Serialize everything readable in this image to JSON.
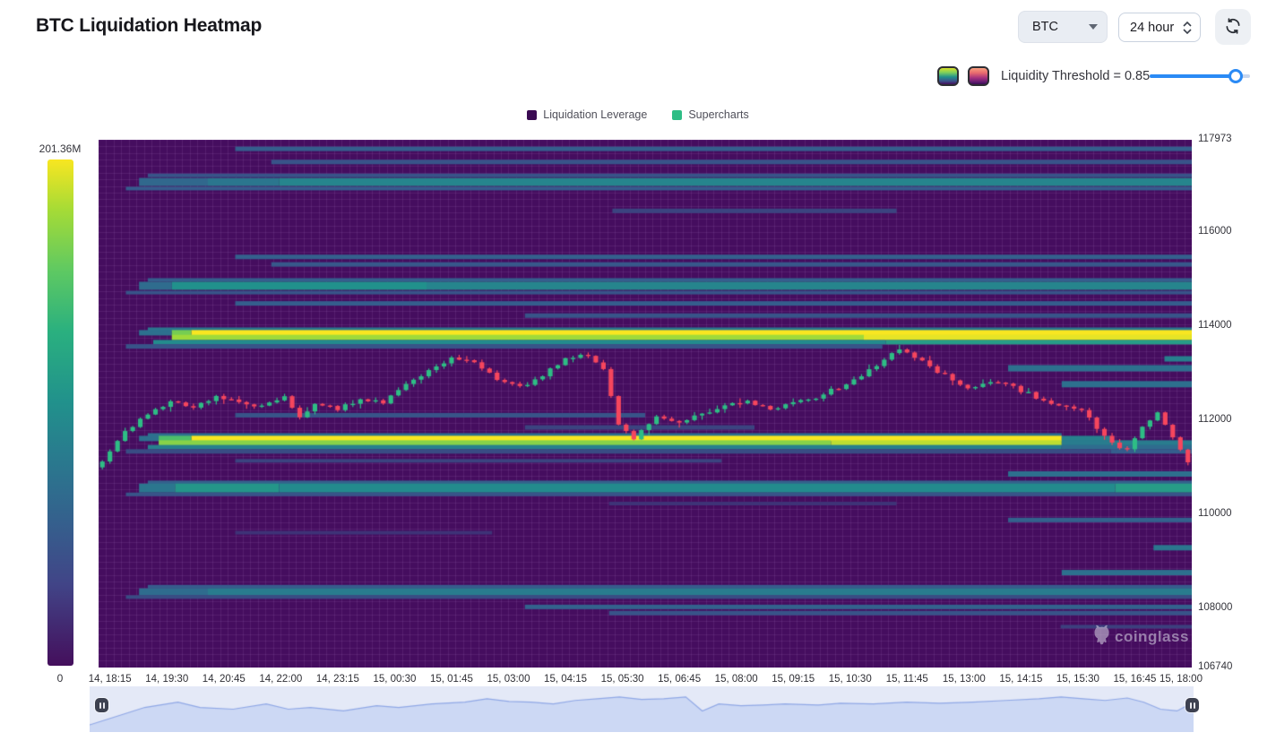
{
  "header": {
    "title": "BTC Liquidation Heatmap"
  },
  "controls": {
    "symbol": "BTC",
    "timeframe": "24 hour",
    "refresh_icon": "refresh-icon",
    "colormap_options": [
      "viridis-colormap",
      "magma-colormap"
    ]
  },
  "threshold": {
    "label": "Liquidity Threshold = 0.85",
    "value": 0.85
  },
  "legend": {
    "items": [
      {
        "label": "Liquidation Leverage",
        "color": "#3a0a52"
      },
      {
        "label": "Supercharts",
        "color": "#2ebd85"
      }
    ]
  },
  "watermark": {
    "text": "coinglass"
  },
  "chart_data": {
    "type": "heatmap",
    "title": "BTC Liquidation Heatmap",
    "background": "#450d5f",
    "grid": true,
    "colorbar": {
      "max_label": "201.36M",
      "min_label": "0",
      "max_value_millions": 201.36,
      "min_value": 0,
      "colormap": "viridis"
    },
    "y_axis": {
      "min": 106740,
      "max": 117973,
      "ticks": [
        117973,
        116000,
        114000,
        112000,
        110000,
        108000,
        106740
      ]
    },
    "x_axis": {
      "ticks": [
        "14, 18:15",
        "14, 19:30",
        "14, 20:45",
        "14, 22:00",
        "14, 23:15",
        "15, 00:30",
        "15, 01:45",
        "15, 03:00",
        "15, 04:15",
        "15, 05:30",
        "15, 06:45",
        "15, 08:00",
        "15, 09:15",
        "15, 10:30",
        "15, 11:45",
        "15, 13:00",
        "15, 14:15",
        "15, 15:30",
        "15, 16:45",
        "15, 18:00"
      ],
      "tick_interval_minutes": 75,
      "first_tick_offset_minutes": 15,
      "total_minutes": 1440
    },
    "candles": {
      "count": 144,
      "up_color": "#2ebd85",
      "down_color": "#f6465d",
      "close_keypoints": [
        [
          0,
          111150
        ],
        [
          3,
          111750
        ],
        [
          6,
          112150
        ],
        [
          9,
          112400
        ],
        [
          12,
          112300
        ],
        [
          15,
          112500
        ],
        [
          18,
          112400
        ],
        [
          21,
          112300
        ],
        [
          24,
          112500
        ],
        [
          26,
          112050
        ],
        [
          28,
          112350
        ],
        [
          31,
          112250
        ],
        [
          34,
          112450
        ],
        [
          37,
          112400
        ],
        [
          40,
          112750
        ],
        [
          43,
          113050
        ],
        [
          46,
          113350
        ],
        [
          49,
          113200
        ],
        [
          52,
          112900
        ],
        [
          55,
          112700
        ],
        [
          58,
          112950
        ],
        [
          61,
          113300
        ],
        [
          64,
          113400
        ],
        [
          66,
          113100
        ],
        [
          68,
          111900
        ],
        [
          70,
          111600
        ],
        [
          73,
          112100
        ],
        [
          76,
          111950
        ],
        [
          79,
          112150
        ],
        [
          82,
          112300
        ],
        [
          85,
          112400
        ],
        [
          88,
          112250
        ],
        [
          91,
          112350
        ],
        [
          94,
          112500
        ],
        [
          97,
          112700
        ],
        [
          100,
          112950
        ],
        [
          103,
          113300
        ],
        [
          105,
          113500
        ],
        [
          108,
          113250
        ],
        [
          111,
          112950
        ],
        [
          114,
          112700
        ],
        [
          117,
          112850
        ],
        [
          120,
          112700
        ],
        [
          123,
          112500
        ],
        [
          126,
          112300
        ],
        [
          129,
          112250
        ],
        [
          131,
          111800
        ],
        [
          133,
          111500
        ],
        [
          135,
          111350
        ],
        [
          137,
          111850
        ],
        [
          139,
          112150
        ],
        [
          141,
          111650
        ],
        [
          143,
          111100
        ]
      ]
    },
    "liquidity_bands": [
      {
        "p": 117780,
        "h": 5,
        "segs": [
          [
            0.125,
            1,
            0.33
          ]
        ]
      },
      {
        "p": 117500,
        "h": 5,
        "segs": [
          [
            0.158,
            1,
            0.3
          ]
        ]
      },
      {
        "p": 117215,
        "h": 4,
        "segs": [
          [
            0.045,
            1,
            0.3
          ]
        ]
      },
      {
        "p": 117075,
        "h": 9,
        "segs": [
          [
            0.037,
            0.1,
            0.38
          ],
          [
            0.1,
            0.165,
            0.45
          ],
          [
            0.165,
            1,
            0.52
          ]
        ]
      },
      {
        "p": 116935,
        "h": 4,
        "segs": [
          [
            0.025,
            1,
            0.32
          ]
        ]
      },
      {
        "p": 116460,
        "h": 5,
        "segs": [
          [
            0.47,
            0.73,
            0.26
          ]
        ]
      },
      {
        "p": 115480,
        "h": 5,
        "segs": [
          [
            0.125,
            1,
            0.34
          ]
        ]
      },
      {
        "p": 115320,
        "h": 5,
        "segs": [
          [
            0.158,
            1,
            0.31
          ]
        ]
      },
      {
        "p": 114990,
        "h": 4,
        "segs": [
          [
            0.045,
            1,
            0.33
          ]
        ]
      },
      {
        "p": 114865,
        "h": 9,
        "segs": [
          [
            0.037,
            0.067,
            0.4
          ],
          [
            0.067,
            0.3,
            0.58
          ],
          [
            0.3,
            1,
            0.52
          ]
        ]
      },
      {
        "p": 114720,
        "h": 4,
        "segs": [
          [
            0.025,
            1,
            0.3
          ]
        ]
      },
      {
        "p": 114490,
        "h": 5,
        "segs": [
          [
            0.125,
            1,
            0.33
          ]
        ]
      },
      {
        "p": 114230,
        "h": 5,
        "segs": [
          [
            0.39,
            1,
            0.3
          ]
        ]
      },
      {
        "p": 113940,
        "h": 4,
        "segs": [
          [
            0.045,
            1,
            0.45
          ]
        ]
      },
      {
        "p": 113865,
        "h": 6,
        "segs": [
          [
            0.037,
            0.067,
            0.42
          ],
          [
            0.067,
            0.085,
            0.8
          ],
          [
            0.085,
            1,
            1.0
          ]
        ]
      },
      {
        "p": 113765,
        "h": 6,
        "segs": [
          [
            0.067,
            0.7,
            0.85
          ],
          [
            0.7,
            1,
            0.97
          ]
        ]
      },
      {
        "p": 113665,
        "h": 5,
        "segs": [
          [
            0.05,
            0.72,
            0.55
          ],
          [
            0.72,
            1,
            0.62
          ]
        ]
      },
      {
        "p": 113575,
        "h": 5,
        "segs": [
          [
            0.025,
            0.717,
            0.3
          ]
        ]
      },
      {
        "p": 113310,
        "h": 6,
        "segs": [
          [
            0.975,
            1,
            0.5
          ]
        ]
      },
      {
        "p": 113110,
        "h": 7,
        "segs": [
          [
            0.832,
            1,
            0.42
          ]
        ]
      },
      {
        "p": 112770,
        "h": 7,
        "segs": [
          [
            0.881,
            1,
            0.42
          ]
        ]
      },
      {
        "p": 112110,
        "h": 5,
        "segs": [
          [
            0.125,
            0.5,
            0.3
          ]
        ]
      },
      {
        "p": 111850,
        "h": 5,
        "segs": [
          [
            0.39,
            0.6,
            0.26
          ]
        ]
      },
      {
        "p": 111690,
        "h": 4,
        "segs": [
          [
            0.045,
            0.881,
            0.42
          ]
        ]
      },
      {
        "p": 111615,
        "h": 6,
        "segs": [
          [
            0.037,
            0.055,
            0.42
          ],
          [
            0.055,
            0.085,
            0.75
          ],
          [
            0.085,
            0.881,
            1.0
          ],
          [
            0.881,
            0.926,
            0.5
          ]
        ]
      },
      {
        "p": 111520,
        "h": 6,
        "segs": [
          [
            0.055,
            0.67,
            0.82
          ],
          [
            0.67,
            0.881,
            0.9
          ],
          [
            0.881,
            1,
            0.48
          ]
        ]
      },
      {
        "p": 111430,
        "h": 5,
        "segs": [
          [
            0.045,
            0.881,
            0.5
          ],
          [
            0.881,
            1,
            0.4
          ]
        ]
      },
      {
        "p": 111340,
        "h": 5,
        "segs": [
          [
            0.025,
            0.926,
            0.28
          ],
          [
            0.926,
            1,
            0.33
          ]
        ]
      },
      {
        "p": 111140,
        "h": 4,
        "segs": [
          [
            0.125,
            0.57,
            0.26
          ]
        ]
      },
      {
        "p": 110860,
        "h": 6,
        "segs": [
          [
            0.832,
            1,
            0.42
          ]
        ]
      },
      {
        "p": 110680,
        "h": 4,
        "segs": [
          [
            0.045,
            1,
            0.35
          ]
        ]
      },
      {
        "p": 110560,
        "h": 10,
        "segs": [
          [
            0.037,
            0.07,
            0.45
          ],
          [
            0.07,
            0.165,
            0.6
          ],
          [
            0.165,
            0.93,
            0.55
          ],
          [
            0.93,
            1,
            0.62
          ]
        ]
      },
      {
        "p": 110425,
        "h": 4,
        "segs": [
          [
            0.025,
            1,
            0.3
          ]
        ]
      },
      {
        "p": 110230,
        "h": 4,
        "segs": [
          [
            0.467,
            0.73,
            0.22
          ]
        ]
      },
      {
        "p": 109880,
        "h": 5,
        "segs": [
          [
            0.832,
            1,
            0.35
          ]
        ]
      },
      {
        "p": 109610,
        "h": 4,
        "segs": [
          [
            0.125,
            0.36,
            0.22
          ]
        ]
      },
      {
        "p": 109290,
        "h": 6,
        "segs": [
          [
            0.965,
            1,
            0.45
          ]
        ]
      },
      {
        "p": 108760,
        "h": 6,
        "segs": [
          [
            0.881,
            1,
            0.42
          ]
        ]
      },
      {
        "p": 108460,
        "h": 4,
        "segs": [
          [
            0.045,
            1,
            0.32
          ]
        ]
      },
      {
        "p": 108350,
        "h": 8,
        "segs": [
          [
            0.037,
            0.1,
            0.4
          ],
          [
            0.1,
            1,
            0.48
          ]
        ]
      },
      {
        "p": 108240,
        "h": 4,
        "segs": [
          [
            0.025,
            1,
            0.28
          ]
        ]
      },
      {
        "p": 108030,
        "h": 5,
        "segs": [
          [
            0.39,
            1,
            0.35
          ]
        ]
      },
      {
        "p": 107900,
        "h": 5,
        "segs": [
          [
            0.467,
            1,
            0.3
          ]
        ]
      },
      {
        "p": 107610,
        "h": 4,
        "segs": [
          [
            0.88,
            1,
            0.25
          ]
        ]
      }
    ],
    "navigator": {
      "fill": "#c8d5f3",
      "line": "#90a8e6",
      "bg": "#e4e9f7",
      "points": [
        [
          0,
          0.95
        ],
        [
          0.02,
          0.75
        ],
        [
          0.05,
          0.45
        ],
        [
          0.08,
          0.3
        ],
        [
          0.1,
          0.45
        ],
        [
          0.13,
          0.5
        ],
        [
          0.16,
          0.35
        ],
        [
          0.18,
          0.5
        ],
        [
          0.2,
          0.45
        ],
        [
          0.23,
          0.55
        ],
        [
          0.26,
          0.4
        ],
        [
          0.28,
          0.45
        ],
        [
          0.31,
          0.35
        ],
        [
          0.34,
          0.3
        ],
        [
          0.36,
          0.2
        ],
        [
          0.38,
          0.28
        ],
        [
          0.4,
          0.3
        ],
        [
          0.42,
          0.35
        ],
        [
          0.44,
          0.25
        ],
        [
          0.46,
          0.2
        ],
        [
          0.48,
          0.15
        ],
        [
          0.5,
          0.22
        ],
        [
          0.52,
          0.2
        ],
        [
          0.54,
          0.15
        ],
        [
          0.555,
          0.55
        ],
        [
          0.57,
          0.35
        ],
        [
          0.59,
          0.4
        ],
        [
          0.61,
          0.38
        ],
        [
          0.63,
          0.35
        ],
        [
          0.66,
          0.38
        ],
        [
          0.68,
          0.33
        ],
        [
          0.71,
          0.35
        ],
        [
          0.74,
          0.3
        ],
        [
          0.77,
          0.33
        ],
        [
          0.8,
          0.3
        ],
        [
          0.83,
          0.25
        ],
        [
          0.86,
          0.2
        ],
        [
          0.88,
          0.15
        ],
        [
          0.9,
          0.2
        ],
        [
          0.92,
          0.25
        ],
        [
          0.94,
          0.18
        ],
        [
          0.955,
          0.3
        ],
        [
          0.97,
          0.5
        ],
        [
          0.985,
          0.55
        ],
        [
          1,
          0.3
        ]
      ]
    }
  }
}
